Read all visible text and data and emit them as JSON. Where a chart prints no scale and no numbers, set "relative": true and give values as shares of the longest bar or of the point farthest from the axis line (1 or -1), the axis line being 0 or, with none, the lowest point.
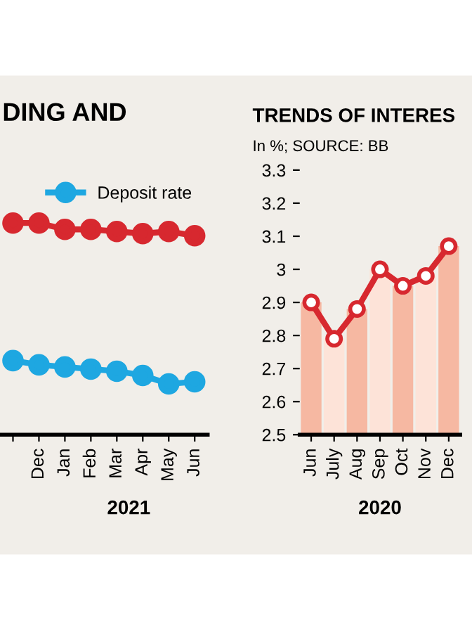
{
  "chart_data": [
    {
      "type": "line",
      "title": "DING AND",
      "relative": true,
      "categories": [
        null,
        "Dec",
        "Jan",
        "Feb",
        "Mar",
        "Apr",
        "May",
        "Jun"
      ],
      "marker": "circle",
      "legend": "top right",
      "grid": false,
      "annotations": [
        "2021"
      ],
      "series": [
        {
          "color": "#d7282f",
          "values": [
            1,
            1,
            0.97,
            0.97,
            0.96,
            0.95,
            0.96,
            0.94
          ]
        },
        {
          "name": "Deposit rate",
          "color": "#1ea7e1",
          "values": [
            0.35,
            0.33,
            0.32,
            0.31,
            0.3,
            0.28,
            0.24,
            0.25
          ]
        }
      ]
    },
    {
      "type": "bar",
      "title": "TRENDS OF INTERES",
      "subtitle": "In %; SOURCE: BB",
      "categories": [
        "Jun",
        "July",
        "Aug",
        "Sep",
        "Oct",
        "Nov",
        "Dec"
      ],
      "ylim": [
        2.5,
        3.3
      ],
      "yticks": [
        2.5,
        2.6,
        2.7,
        2.8,
        2.9,
        3,
        3.1,
        3.2,
        3.3
      ],
      "grid": false,
      "annotations": [
        "2020"
      ],
      "series": [
        {
          "type": "bar",
          "colors": [
            "#f6b8a2",
            "#fde3d8",
            "#f6b8a2",
            "#fde3d8",
            "#f6b8a2",
            "#fde3d8",
            "#f6b8a2"
          ],
          "values": [
            2.9,
            2.79,
            2.88,
            3.0,
            2.95,
            2.98,
            3.07
          ]
        },
        {
          "type": "line",
          "color": "#d7282f",
          "marker": "circle",
          "values": [
            2.9,
            2.79,
            2.88,
            3.0,
            2.95,
            2.98,
            3.07
          ]
        }
      ]
    }
  ]
}
